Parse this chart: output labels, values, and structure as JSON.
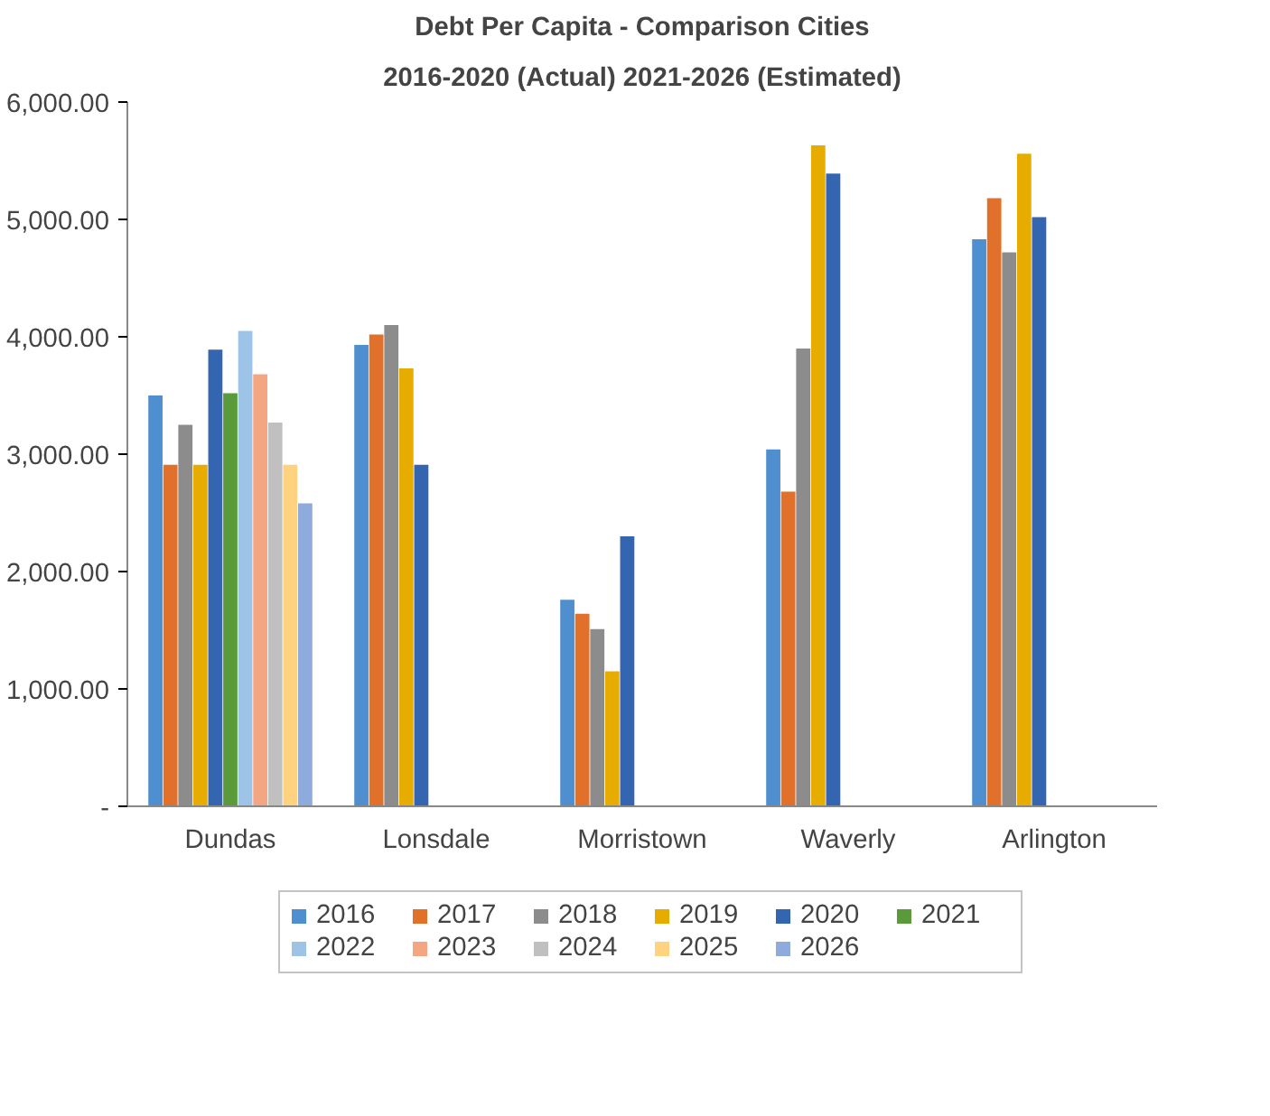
{
  "chart_data": {
    "type": "bar",
    "title": "Debt Per Capita - Comparison Cities",
    "subtitle": "2016-2020 (Actual) 2021-2026 (Estimated)",
    "categories": [
      "Dundas",
      "Lonsdale",
      "Morristown",
      "Waverly",
      "Arlington"
    ],
    "ylim": [
      0,
      6000
    ],
    "yticks": [
      {
        "value": 0,
        "label": "-"
      },
      {
        "value": 1000,
        "label": "1,000.00"
      },
      {
        "value": 2000,
        "label": "2,000.00"
      },
      {
        "value": 3000,
        "label": "3,000.00"
      },
      {
        "value": 4000,
        "label": "4,000.00"
      },
      {
        "value": 5000,
        "label": "5,000.00"
      },
      {
        "value": 6000,
        "label": "6,000.00"
      }
    ],
    "grid": false,
    "legend": "bottom",
    "series": [
      {
        "name": "2016",
        "color": "#4f8fcf",
        "values": [
          3500,
          3930,
          1760,
          3040,
          4830
        ]
      },
      {
        "name": "2017",
        "color": "#e0702a",
        "values": [
          2910,
          4020,
          1640,
          2680,
          5180
        ]
      },
      {
        "name": "2018",
        "color": "#8c8c8c",
        "values": [
          3250,
          4100,
          1510,
          3900,
          4720
        ]
      },
      {
        "name": "2019",
        "color": "#e6ac00",
        "values": [
          2910,
          3730,
          1150,
          5630,
          5560
        ]
      },
      {
        "name": "2020",
        "color": "#3465b0",
        "values": [
          3890,
          2910,
          2300,
          5390,
          5020
        ]
      },
      {
        "name": "2021",
        "color": "#5a9a3a",
        "values": [
          3520,
          null,
          null,
          null,
          null
        ]
      },
      {
        "name": "2022",
        "color": "#9dc3e6",
        "values": [
          4050,
          null,
          null,
          null,
          null
        ]
      },
      {
        "name": "2023",
        "color": "#f4a582",
        "values": [
          3680,
          null,
          null,
          null,
          null
        ]
      },
      {
        "name": "2024",
        "color": "#c0c0c0",
        "values": [
          3270,
          null,
          null,
          null,
          null
        ]
      },
      {
        "name": "2025",
        "color": "#ffd27f",
        "values": [
          2910,
          null,
          null,
          null,
          null
        ]
      },
      {
        "name": "2026",
        "color": "#8faadc",
        "values": [
          2580,
          null,
          null,
          null,
          null
        ]
      }
    ]
  }
}
